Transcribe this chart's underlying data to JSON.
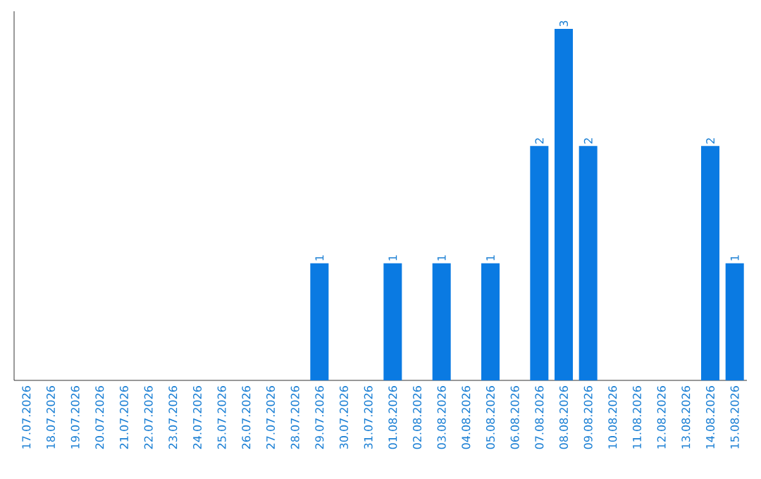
{
  "chart_data": {
    "type": "bar",
    "categories": [
      "17.07.2026",
      "18.07.2026",
      "19.07.2026",
      "20.07.2026",
      "21.07.2026",
      "22.07.2026",
      "23.07.2026",
      "24.07.2026",
      "25.07.2026",
      "26.07.2026",
      "27.07.2026",
      "28.07.2026",
      "29.07.2026",
      "30.07.2026",
      "31.07.2026",
      "01.08.2026",
      "02.08.2026",
      "03.08.2026",
      "04.08.2026",
      "05.08.2026",
      "06.08.2026",
      "07.08.2026",
      "08.08.2026",
      "09.08.2026",
      "10.08.2026",
      "11.08.2026",
      "12.08.2026",
      "13.08.2026",
      "14.08.2026",
      "15.08.2026"
    ],
    "values": [
      null,
      null,
      null,
      null,
      null,
      null,
      null,
      null,
      null,
      null,
      null,
      null,
      1,
      null,
      null,
      1,
      null,
      1,
      null,
      1,
      null,
      2,
      3,
      2,
      null,
      null,
      null,
      null,
      2,
      1
    ],
    "color": "#0a7ae2",
    "data_labels": true,
    "tick_labels": "x"
  }
}
